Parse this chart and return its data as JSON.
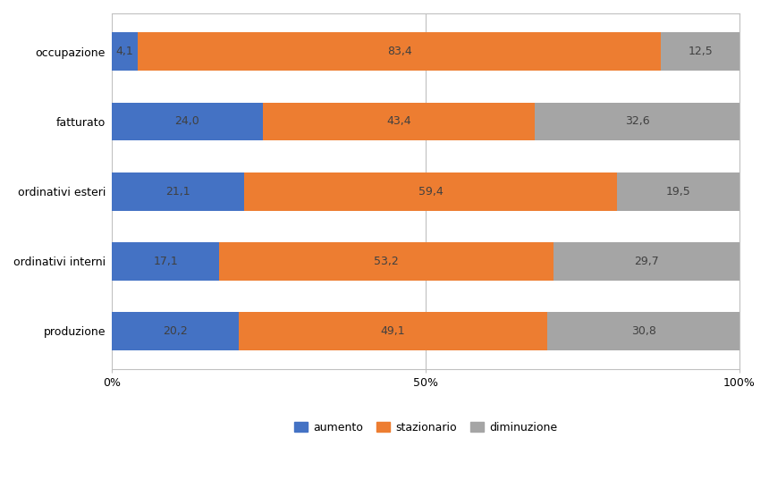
{
  "categories": [
    "produzione",
    "ordinativi interni",
    "ordinativi esteri",
    "fatturato",
    "occupazione"
  ],
  "aumento": [
    20.2,
    17.1,
    21.1,
    24.0,
    4.1
  ],
  "stazionario": [
    49.1,
    53.2,
    59.4,
    43.4,
    83.4
  ],
  "diminuzione": [
    30.8,
    29.7,
    19.5,
    32.6,
    12.5
  ],
  "color_aumento": "#4472C4",
  "color_stazionario": "#ED7D31",
  "color_diminuzione": "#A5A5A5",
  "label_aumento": "aumento",
  "label_stazionario": "stazionario",
  "label_diminuzione": "diminuzione",
  "xticks": [
    0,
    50,
    100
  ],
  "xticklabels": [
    "0%",
    "50%",
    "100%"
  ],
  "background_color": "#FFFFFF",
  "bar_height": 0.55,
  "fontsize_bar_labels": 9,
  "fontsize_axis": 9,
  "fontsize_legend": 9,
  "fontsize_yticks": 9,
  "label_color": "#404040",
  "grid_color": "#C0C0C0",
  "spine_color": "#C0C0C0"
}
